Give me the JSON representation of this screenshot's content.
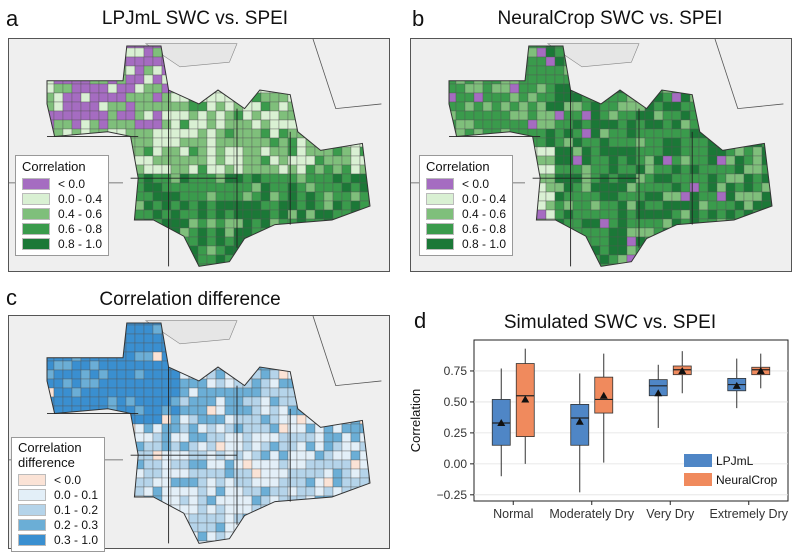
{
  "panels": {
    "a": {
      "letter": "a",
      "title": "LPJmL SWC vs. SPEI"
    },
    "b": {
      "letter": "b",
      "title": "NeuralCrop SWC vs. SPEI"
    },
    "c": {
      "letter": "c",
      "title": "Correlation difference"
    },
    "d": {
      "letter": "d",
      "title": "Simulated SWC vs. SPEI"
    }
  },
  "legend_corr": {
    "title": "Correlation",
    "items": [
      {
        "label": "< 0.0",
        "color": "#a56cc1"
      },
      {
        "label": "0.0 - 0.4",
        "color": "#d9f0d3"
      },
      {
        "label": "0.4 - 0.6",
        "color": "#7fbf7b"
      },
      {
        "label": "0.6 - 0.8",
        "color": "#3a9b4c"
      },
      {
        "label": "0.8 - 1.0",
        "color": "#1b7837"
      }
    ]
  },
  "legend_diff": {
    "title_line1": "Correlation",
    "title_line2": "difference",
    "items": [
      {
        "label": "< 0.0",
        "color": "#fbe3d6"
      },
      {
        "label": "0.0 - 0.1",
        "color": "#e3eff8"
      },
      {
        "label": "0.1 - 0.2",
        "color": "#b5d4ea"
      },
      {
        "label": "0.2 - 0.3",
        "color": "#6baed6"
      },
      {
        "label": "0.3 - 1.0",
        "color": "#3a8fd0"
      }
    ]
  },
  "chart_data": {
    "type": "box",
    "title": "Simulated SWC vs. SPEI",
    "ylabel": "Correlation",
    "xlabel": "",
    "ylim": [
      -0.3,
      1.0
    ],
    "yticks": [
      -0.25,
      0.0,
      0.25,
      0.5,
      0.75
    ],
    "ytick_labels": [
      "−0.25",
      "0.00",
      "0.25",
      "0.50",
      "0.75"
    ],
    "categories": [
      "Normal",
      "Moderately Dry",
      "Very Dry",
      "Extremely Dry"
    ],
    "legend_position": "bottom-right",
    "series": [
      {
        "name": "LPJmL",
        "color": "#4f86c6",
        "boxes": [
          {
            "whisker_low": -0.1,
            "q1": 0.15,
            "median": 0.33,
            "q3": 0.52,
            "whisker_high": 0.77,
            "mean": 0.33
          },
          {
            "whisker_low": -0.23,
            "q1": 0.15,
            "median": 0.37,
            "q3": 0.48,
            "whisker_high": 0.73,
            "mean": 0.34
          },
          {
            "whisker_low": 0.29,
            "q1": 0.55,
            "median": 0.63,
            "q3": 0.68,
            "whisker_high": 0.8,
            "mean": 0.57
          },
          {
            "whisker_low": 0.45,
            "q1": 0.59,
            "median": 0.64,
            "q3": 0.69,
            "whisker_high": 0.85,
            "mean": 0.63
          }
        ]
      },
      {
        "name": "NeuralCrop",
        "color": "#f08a5d",
        "boxes": [
          {
            "whisker_low": 0.0,
            "q1": 0.22,
            "median": 0.55,
            "q3": 0.81,
            "whisker_high": 0.93,
            "mean": 0.52
          },
          {
            "whisker_low": 0.01,
            "q1": 0.41,
            "median": 0.52,
            "q3": 0.7,
            "whisker_high": 0.89,
            "mean": 0.55
          },
          {
            "whisker_low": 0.57,
            "q1": 0.72,
            "median": 0.76,
            "q3": 0.79,
            "whisker_high": 0.91,
            "mean": 0.75
          },
          {
            "whisker_low": 0.61,
            "q1": 0.72,
            "median": 0.76,
            "q3": 0.78,
            "whisker_high": 0.89,
            "mean": 0.75
          }
        ]
      }
    ]
  }
}
